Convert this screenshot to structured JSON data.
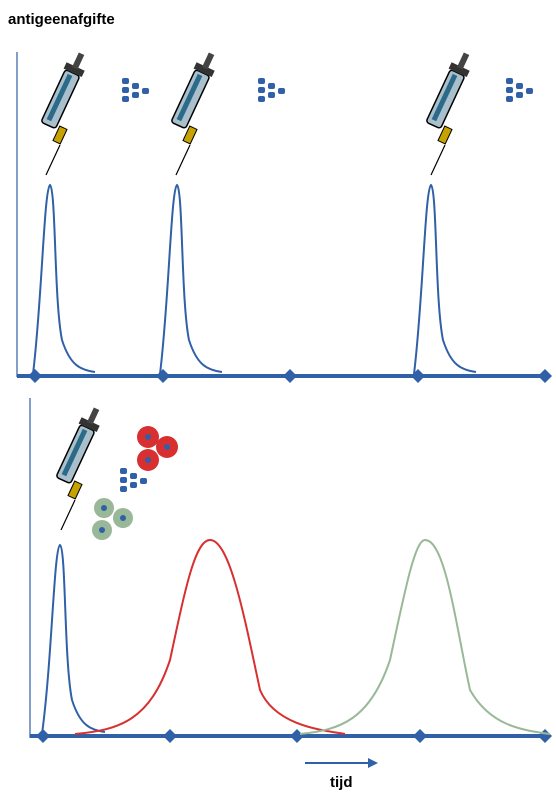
{
  "labels": {
    "y_axis": "antigeenafgifte",
    "x_axis": "tijd"
  }
}
